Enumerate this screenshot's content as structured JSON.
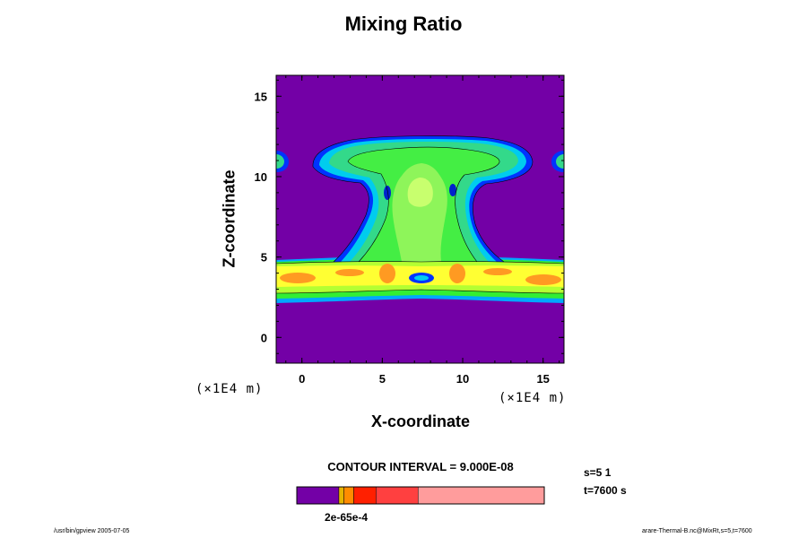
{
  "chart_data": {
    "type": "heatmap",
    "title": "Mixing Ratio",
    "xlabel": "X-coordinate",
    "ylabel": "Z-coordinate",
    "x_unit": "(×1E4 m)",
    "y_unit": "(×1E4 m)",
    "xlim": [
      -1.6,
      16.3
    ],
    "ylim": [
      -1.6,
      16.3
    ],
    "x_ticks": [
      "0",
      "5",
      "10",
      "15"
    ],
    "y_ticks": [
      "0",
      "5",
      "10",
      "15"
    ],
    "grid": false,
    "background_color": "#7300a6",
    "colorbar": {
      "label": "2e-65e-4",
      "colors": [
        "#7300a6",
        "#e6b400",
        "#ff8c00",
        "#ff2000",
        "#ff4040",
        "#ff9c9c"
      ],
      "fractions": [
        0.17,
        0.02,
        0.04,
        0.09,
        0.17,
        0.51
      ]
    }
  },
  "contour_interval": "CONTOUR INTERVAL = 9.000E-08",
  "stamp": {
    "s": "s=5 1",
    "t": "t=7600 s"
  },
  "footer": {
    "left": "/usr/bin/gpview 2005-07-05",
    "right": "arare-Thermal-B.nc@MixRt,s=5,t=7600"
  }
}
